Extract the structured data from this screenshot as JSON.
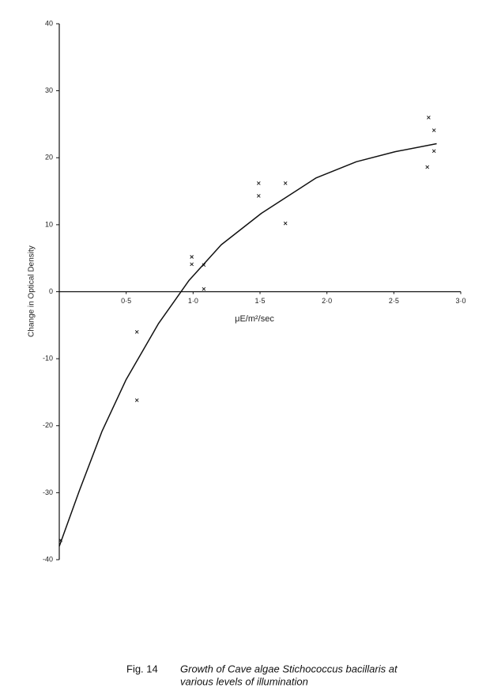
{
  "chart_data": {
    "type": "scatter",
    "xlabel": "μE/m²/sec",
    "ylabel": "Change in Optical Density",
    "figure_label": "Fig. 14",
    "caption_line1": "Growth of Cave algae Stichococcus bacillaris at",
    "caption_line2": "various levels of illumination",
    "color": "#111111",
    "x": [
      0.01,
      0.58,
      0.58,
      0.99,
      0.99,
      1.08,
      1.08,
      1.49,
      1.49,
      1.69,
      1.69,
      2.76,
      2.8,
      2.8,
      2.75
    ],
    "values": [
      -37.1,
      -6,
      -16.2,
      5.2,
      4.1,
      4.0,
      0.4,
      16.2,
      14.3,
      16.2,
      10.2,
      26.0,
      24.1,
      21.0,
      18.6
    ],
    "curve": {
      "x": [
        0,
        0.15,
        0.32,
        0.5,
        0.74,
        0.97,
        1.21,
        1.51,
        1.92,
        2.22,
        2.51,
        2.82
      ],
      "values": [
        -38,
        -29.7,
        -20.8,
        -13.1,
        -4.8,
        1.7,
        7,
        11.7,
        17,
        19.4,
        20.9,
        22.1
      ]
    },
    "xlim": [
      0,
      3.0
    ],
    "xticks": [
      {
        "value": 0.5,
        "label": "0·5"
      },
      {
        "value": 1.0,
        "label": "1·0"
      },
      {
        "value": 1.5,
        "label": "1·5"
      },
      {
        "value": 2.0,
        "label": "2·0"
      },
      {
        "value": 2.5,
        "label": "2·5"
      },
      {
        "value": 3.0,
        "label": "3·0"
      }
    ],
    "ylim": [
      -40,
      40
    ],
    "yticks": [
      -40,
      -30,
      -20,
      -10,
      0,
      10,
      20,
      30,
      40
    ]
  }
}
